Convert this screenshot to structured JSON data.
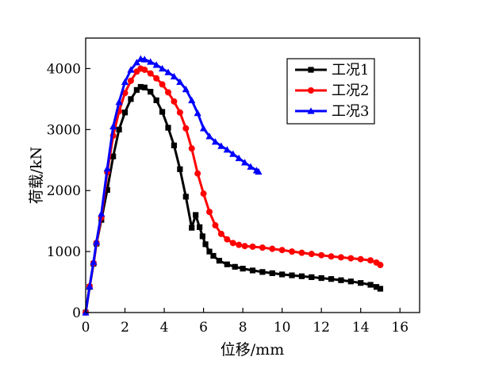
{
  "chart_data": {
    "type": "line",
    "title": "",
    "xlabel": "位移/mm",
    "ylabel": "荷载/kN",
    "xlim": [
      0,
      17
    ],
    "ylim": [
      0,
      4500
    ],
    "xticks": [
      0,
      2,
      4,
      6,
      8,
      10,
      12,
      14,
      16
    ],
    "yticks": [
      0,
      1000,
      2000,
      3000,
      4000
    ],
    "grid": false,
    "legend_position": "top-right",
    "series": [
      {
        "name": "工况1",
        "color": "#000000",
        "marker": "square",
        "x": [
          0.0,
          0.2,
          0.4,
          0.55,
          0.8,
          1.1,
          1.4,
          1.7,
          2.0,
          2.3,
          2.6,
          2.8,
          3.0,
          3.3,
          3.6,
          3.9,
          4.2,
          4.5,
          4.8,
          5.1,
          5.4,
          5.6,
          5.8,
          5.95,
          6.1,
          6.3,
          6.5,
          6.8,
          7.2,
          7.6,
          8.0,
          8.5,
          9.0,
          9.5,
          10.0,
          10.5,
          11.0,
          11.5,
          12.0,
          12.5,
          13.0,
          13.5,
          14.0,
          14.5,
          14.8,
          15.0
        ],
        "y": [
          0,
          420,
          800,
          1130,
          1520,
          2010,
          2560,
          3000,
          3280,
          3500,
          3650,
          3700,
          3690,
          3620,
          3480,
          3290,
          3030,
          2740,
          2350,
          1900,
          1390,
          1600,
          1400,
          1250,
          1120,
          1000,
          930,
          850,
          790,
          750,
          720,
          690,
          665,
          645,
          625,
          610,
          595,
          580,
          565,
          550,
          530,
          510,
          485,
          455,
          420,
          390
        ]
      },
      {
        "name": "工况2",
        "color": "#ff0000",
        "marker": "circle",
        "x": [
          0.0,
          0.2,
          0.4,
          0.55,
          0.8,
          1.1,
          1.4,
          1.7,
          2.0,
          2.3,
          2.6,
          2.8,
          3.0,
          3.3,
          3.6,
          3.9,
          4.2,
          4.5,
          4.8,
          5.1,
          5.4,
          5.7,
          6.0,
          6.3,
          6.6,
          6.9,
          7.2,
          7.5,
          7.8,
          8.1,
          8.5,
          9.0,
          9.5,
          10.0,
          10.5,
          11.0,
          11.5,
          12.0,
          12.5,
          13.0,
          13.5,
          14.0,
          14.5,
          14.8,
          15.0
        ],
        "y": [
          0,
          430,
          810,
          1140,
          1560,
          2300,
          2900,
          3300,
          3600,
          3800,
          3950,
          4000,
          3980,
          3920,
          3840,
          3740,
          3610,
          3460,
          3280,
          3020,
          2690,
          2280,
          1950,
          1650,
          1430,
          1290,
          1200,
          1140,
          1110,
          1090,
          1080,
          1065,
          1045,
          1025,
          1000,
          980,
          960,
          940,
          920,
          905,
          890,
          875,
          855,
          820,
          780
        ]
      },
      {
        "name": "工况3",
        "color": "#0000ff",
        "marker": "triangle",
        "x": [
          0.0,
          0.2,
          0.4,
          0.55,
          0.8,
          1.1,
          1.4,
          1.7,
          2.0,
          2.3,
          2.6,
          2.8,
          3.0,
          3.3,
          3.6,
          3.9,
          4.2,
          4.5,
          4.8,
          5.1,
          5.4,
          5.7,
          6.0,
          6.3,
          6.6,
          6.9,
          7.2,
          7.5,
          7.8,
          8.1,
          8.4,
          8.7,
          8.8
        ],
        "y": [
          0,
          430,
          830,
          1160,
          1620,
          2360,
          3050,
          3450,
          3780,
          3980,
          4100,
          4160,
          4150,
          4110,
          4060,
          4000,
          3940,
          3870,
          3780,
          3660,
          3480,
          3270,
          3020,
          2890,
          2800,
          2730,
          2670,
          2600,
          2530,
          2460,
          2390,
          2330,
          2310
        ]
      }
    ]
  }
}
